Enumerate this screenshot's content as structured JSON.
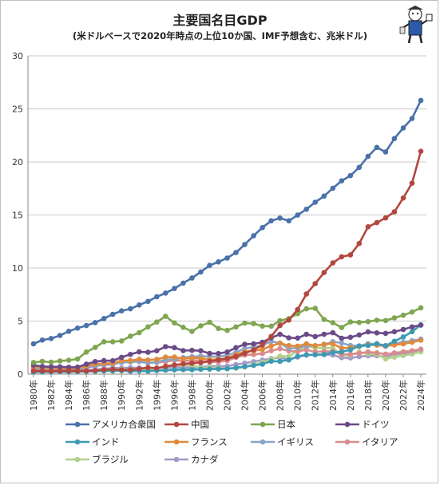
{
  "title": "主要国名目GDP",
  "subtitle": "(米ドルベースで2020年時点の上位10か国、IMF予想含む、兆米ドル)",
  "logo": {
    "icon": "mascot-illustration-icon"
  },
  "chart_data": {
    "type": "line",
    "x": [
      1980,
      1981,
      1982,
      1983,
      1984,
      1985,
      1986,
      1987,
      1988,
      1989,
      1990,
      1991,
      1992,
      1993,
      1994,
      1995,
      1996,
      1997,
      1998,
      1999,
      2000,
      2001,
      2002,
      2003,
      2004,
      2005,
      2006,
      2007,
      2008,
      2009,
      2010,
      2011,
      2012,
      2013,
      2014,
      2015,
      2016,
      2017,
      2018,
      2019,
      2020,
      2021,
      2022,
      2023,
      2024
    ],
    "x_tick_labels": [
      "1980年",
      "1982年",
      "1984年",
      "1986年",
      "1988年",
      "1990年",
      "1992年",
      "1994年",
      "1996年",
      "1998年",
      "2000年",
      "2002年",
      "2004年",
      "2006年",
      "2008年",
      "2010年",
      "2012年",
      "2014年",
      "2016年",
      "2018年",
      "2020年",
      "2022年",
      "2024年"
    ],
    "ylim": [
      0,
      30
    ],
    "y_ticks": [
      0,
      5,
      10,
      15,
      20,
      25,
      30
    ],
    "grid": "horizontal",
    "legend_position": "bottom",
    "series": [
      {
        "name": "アメリカ合衆国",
        "color": "#4a72a8",
        "values": [
          2.86,
          3.21,
          3.35,
          3.64,
          4.04,
          4.34,
          4.58,
          4.86,
          5.24,
          5.64,
          5.96,
          6.16,
          6.52,
          6.86,
          7.29,
          7.64,
          8.07,
          8.58,
          9.06,
          9.63,
          10.25,
          10.58,
          10.94,
          11.46,
          12.21,
          13.04,
          13.81,
          14.45,
          14.71,
          14.45,
          14.99,
          15.54,
          16.2,
          16.78,
          17.52,
          18.22,
          18.71,
          19.49,
          20.53,
          21.37,
          20.94,
          22.2,
          23.2,
          24.1,
          25.8
        ]
      },
      {
        "name": "中国",
        "color": "#b3473f",
        "values": [
          0.3,
          0.29,
          0.28,
          0.3,
          0.31,
          0.31,
          0.3,
          0.33,
          0.41,
          0.46,
          0.4,
          0.41,
          0.49,
          0.62,
          0.56,
          0.73,
          0.86,
          0.96,
          1.03,
          1.09,
          1.21,
          1.34,
          1.47,
          1.66,
          1.96,
          2.29,
          2.75,
          3.55,
          4.59,
          5.1,
          6.09,
          7.55,
          8.53,
          9.57,
          10.48,
          11.06,
          11.23,
          12.31,
          13.89,
          14.28,
          14.72,
          15.3,
          16.6,
          18.0,
          21.0
        ]
      },
      {
        "name": "日本",
        "color": "#7fa650",
        "values": [
          1.1,
          1.2,
          1.13,
          1.24,
          1.31,
          1.43,
          2.08,
          2.52,
          3.05,
          3.05,
          3.13,
          3.58,
          3.91,
          4.45,
          4.91,
          5.45,
          4.83,
          4.41,
          4.03,
          4.56,
          4.89,
          4.3,
          4.12,
          4.45,
          4.81,
          4.76,
          4.53,
          4.52,
          5.04,
          5.23,
          5.7,
          6.16,
          6.2,
          5.16,
          4.85,
          4.39,
          4.92,
          4.87,
          4.95,
          5.08,
          5.05,
          5.3,
          5.55,
          5.85,
          6.25
        ]
      },
      {
        "name": "ドイツ",
        "color": "#6b4a89",
        "values": [
          0.85,
          0.72,
          0.69,
          0.69,
          0.65,
          0.66,
          0.94,
          1.18,
          1.27,
          1.26,
          1.59,
          1.86,
          2.1,
          2.06,
          2.2,
          2.59,
          2.5,
          2.22,
          2.24,
          2.2,
          1.95,
          1.94,
          2.08,
          2.5,
          2.81,
          2.85,
          3.0,
          3.43,
          3.75,
          3.42,
          3.4,
          3.75,
          3.54,
          3.75,
          3.9,
          3.38,
          3.47,
          3.69,
          3.98,
          3.89,
          3.84,
          4.0,
          4.2,
          4.45,
          4.62
        ]
      },
      {
        "name": "インド",
        "color": "#3d9ab3",
        "values": [
          0.19,
          0.2,
          0.2,
          0.22,
          0.21,
          0.23,
          0.25,
          0.27,
          0.3,
          0.3,
          0.32,
          0.27,
          0.29,
          0.28,
          0.33,
          0.37,
          0.4,
          0.42,
          0.42,
          0.46,
          0.47,
          0.48,
          0.51,
          0.61,
          0.71,
          0.82,
          0.94,
          1.22,
          1.2,
          1.34,
          1.68,
          1.82,
          1.83,
          1.86,
          2.04,
          2.1,
          2.29,
          2.65,
          2.7,
          2.87,
          2.67,
          3.1,
          3.5,
          4.0,
          4.65
        ]
      },
      {
        "name": "フランス",
        "color": "#e08a3d",
        "values": [
          0.7,
          0.62,
          0.58,
          0.56,
          0.53,
          0.55,
          0.77,
          0.94,
          1.02,
          1.02,
          1.27,
          1.27,
          1.4,
          1.32,
          1.39,
          1.6,
          1.61,
          1.46,
          1.51,
          1.49,
          1.37,
          1.38,
          1.5,
          1.84,
          2.12,
          2.2,
          2.32,
          2.66,
          2.92,
          2.69,
          2.64,
          2.86,
          2.68,
          2.81,
          2.86,
          2.44,
          2.47,
          2.59,
          2.79,
          2.73,
          2.63,
          2.75,
          2.85,
          3.0,
          3.2
        ]
      },
      {
        "name": "イギリス",
        "color": "#8aa5c8",
        "values": [
          0.6,
          0.54,
          0.51,
          0.49,
          0.46,
          0.49,
          0.6,
          0.75,
          0.91,
          0.93,
          1.09,
          1.14,
          1.18,
          1.06,
          1.14,
          1.34,
          1.42,
          1.56,
          1.65,
          1.69,
          1.66,
          1.64,
          1.78,
          2.05,
          2.42,
          2.54,
          2.71,
          3.09,
          2.92,
          2.41,
          2.48,
          2.66,
          2.7,
          2.78,
          3.06,
          2.93,
          2.7,
          2.66,
          2.87,
          2.83,
          2.71,
          2.9,
          3.0,
          3.15,
          3.3
        ]
      },
      {
        "name": "イタリア",
        "color": "#d98c8c",
        "values": [
          0.48,
          0.43,
          0.43,
          0.45,
          0.44,
          0.45,
          0.63,
          0.79,
          0.86,
          0.92,
          1.18,
          1.24,
          1.32,
          1.06,
          1.1,
          1.17,
          1.31,
          1.24,
          1.27,
          1.25,
          1.14,
          1.16,
          1.27,
          1.57,
          1.8,
          1.85,
          1.94,
          2.2,
          2.4,
          2.19,
          2.13,
          2.29,
          2.09,
          2.14,
          2.16,
          1.84,
          1.88,
          1.96,
          2.09,
          2.01,
          1.89,
          2.0,
          2.1,
          2.2,
          2.35
        ]
      },
      {
        "name": "ブラジル",
        "color": "#b3d08a",
        "values": [
          0.24,
          0.26,
          0.28,
          0.2,
          0.2,
          0.22,
          0.26,
          0.29,
          0.33,
          0.45,
          0.46,
          0.41,
          0.39,
          0.44,
          0.56,
          0.77,
          0.84,
          0.87,
          0.84,
          0.59,
          0.65,
          0.56,
          0.51,
          0.56,
          0.67,
          0.89,
          1.11,
          1.4,
          1.7,
          1.67,
          2.21,
          2.62,
          2.47,
          2.47,
          2.46,
          1.8,
          1.8,
          2.06,
          1.92,
          1.88,
          1.44,
          1.6,
          1.75,
          1.9,
          2.1
        ]
      },
      {
        "name": "カナダ",
        "color": "#a39ac8",
        "values": [
          0.28,
          0.31,
          0.31,
          0.34,
          0.35,
          0.36,
          0.37,
          0.43,
          0.51,
          0.57,
          0.59,
          0.61,
          0.59,
          0.58,
          0.58,
          0.6,
          0.63,
          0.65,
          0.63,
          0.67,
          0.74,
          0.74,
          0.76,
          0.9,
          1.03,
          1.17,
          1.32,
          1.46,
          1.55,
          1.37,
          1.61,
          1.79,
          1.83,
          1.84,
          1.8,
          1.56,
          1.53,
          1.65,
          1.72,
          1.74,
          1.64,
          1.85,
          1.95,
          2.05,
          2.2
        ]
      }
    ]
  }
}
